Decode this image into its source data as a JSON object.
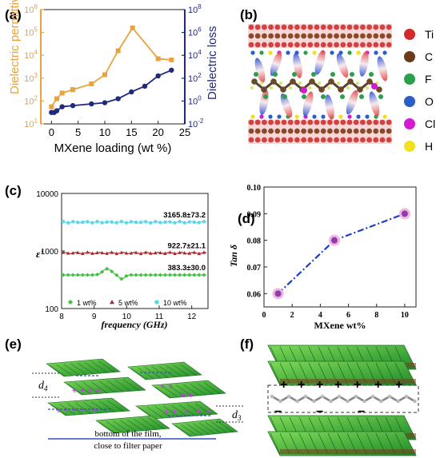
{
  "panels": {
    "a": {
      "label": "(a)"
    },
    "b": {
      "label": "(b)"
    },
    "c": {
      "label": "(c)"
    },
    "d": {
      "label": "(d)"
    },
    "e": {
      "label": "(e)"
    },
    "f": {
      "label": "(f)"
    }
  },
  "colors": {
    "orange": "#E8A340",
    "navy": "#1F2A7A",
    "c_1wt": "#3FC23F",
    "c_5wt": "#A52A2A",
    "c_10wt": "#5BD8E8",
    "d_line": "#1E3FCC",
    "d_marker": "#8B3FA8",
    "d_halo": "#F4B4E4"
  },
  "chart_data": [
    {
      "panel": "a",
      "type": "line",
      "xlabel": "MXene loading (wt %)",
      "ylabel_left": "Dielectric permittivity",
      "ylabel_right": "Dielectric loss",
      "xlim": [
        -2,
        25
      ],
      "xticks": [
        "0",
        "5",
        "10",
        "15",
        "20",
        "25"
      ],
      "left_scale": "log",
      "left_ylim_exp": [
        1,
        6
      ],
      "left_ticks": [
        "10^1",
        "10^2",
        "10^3",
        "10^4",
        "10^5",
        "10^6"
      ],
      "right_scale": "log",
      "right_ylim_exp": [
        -2,
        8
      ],
      "right_ticks": [
        "10^-2",
        "10^0",
        "10^2",
        "10^4",
        "10^6",
        "10^8"
      ],
      "series": [
        {
          "axis": "left",
          "color_key": "orange",
          "x": [
            0,
            1,
            2,
            4,
            7.5,
            10,
            12.5,
            15.2,
            20,
            22.5
          ],
          "y_exp": [
            1.75,
            2.1,
            2.35,
            2.5,
            2.75,
            3.15,
            4.2,
            5.2,
            3.85,
            3.8
          ]
        },
        {
          "axis": "right",
          "color_key": "navy",
          "x": [
            0,
            0.5,
            1,
            2,
            4,
            7.5,
            10,
            12.5,
            15,
            17.5,
            20,
            22.5
          ],
          "y_exp": [
            -1,
            -1,
            -0.85,
            -0.5,
            -0.4,
            -0.25,
            -0.15,
            0.2,
            0.8,
            1.3,
            2.2,
            2.7
          ]
        }
      ]
    },
    {
      "panel": "c",
      "type": "line",
      "xlabel": "frequency (GHz)",
      "ylabel": "ε'",
      "xlim": [
        8,
        12.5
      ],
      "xticks": [
        "8",
        "9",
        "10",
        "11",
        "12"
      ],
      "yscale": "log",
      "ylim": [
        100,
        10000
      ],
      "yticks": [
        "100",
        "1000",
        "10000"
      ],
      "series": [
        {
          "name": "1 wt%",
          "color_key": "c_1wt",
          "marker": "diamond",
          "level": 383.3,
          "annotation": "383.3±30.0",
          "bump": true
        },
        {
          "name": "5 wt%",
          "color_key": "c_5wt",
          "marker": "triangle",
          "level": 922.7,
          "annotation": "922.7±21.1",
          "bump": false
        },
        {
          "name": "10 wt%",
          "color_key": "c_10wt",
          "marker": "star",
          "level": 3165.8,
          "annotation": "3165.8±73.2",
          "bump": false
        }
      ]
    },
    {
      "panel": "d",
      "type": "line",
      "xlabel": "MXene wt%",
      "ylabel": "Tan δ",
      "xlim": [
        0,
        10.8
      ],
      "xticks": [
        "0",
        "2",
        "4",
        "6",
        "8",
        "10"
      ],
      "ylim": [
        0.055,
        0.1
      ],
      "yticks": [
        "0.06",
        "0.07",
        "0.08",
        "0.09",
        "0.10"
      ],
      "x": [
        1,
        5,
        10
      ],
      "y": [
        0.06,
        0.08,
        0.09
      ]
    }
  ],
  "legend_b": [
    {
      "label": "Ti",
      "color": "#D42A2A"
    },
    {
      "label": "C",
      "color": "#6B3A1A"
    },
    {
      "label": "F",
      "color": "#2BA04A"
    },
    {
      "label": "O",
      "color": "#2A5FC8"
    },
    {
      "label": "Cl",
      "color": "#D41AD4"
    },
    {
      "label": "H",
      "color": "#F0E020"
    }
  ],
  "panel_e": {
    "d4": "d4",
    "d3": "d3",
    "caption_line1": "bottom of the film,",
    "caption_line2": "close to filter paper"
  },
  "panel_f": {
    "signs": [
      "+",
      "+",
      "+",
      "+",
      "+",
      "+",
      "+",
      "−",
      "−",
      "−"
    ]
  }
}
